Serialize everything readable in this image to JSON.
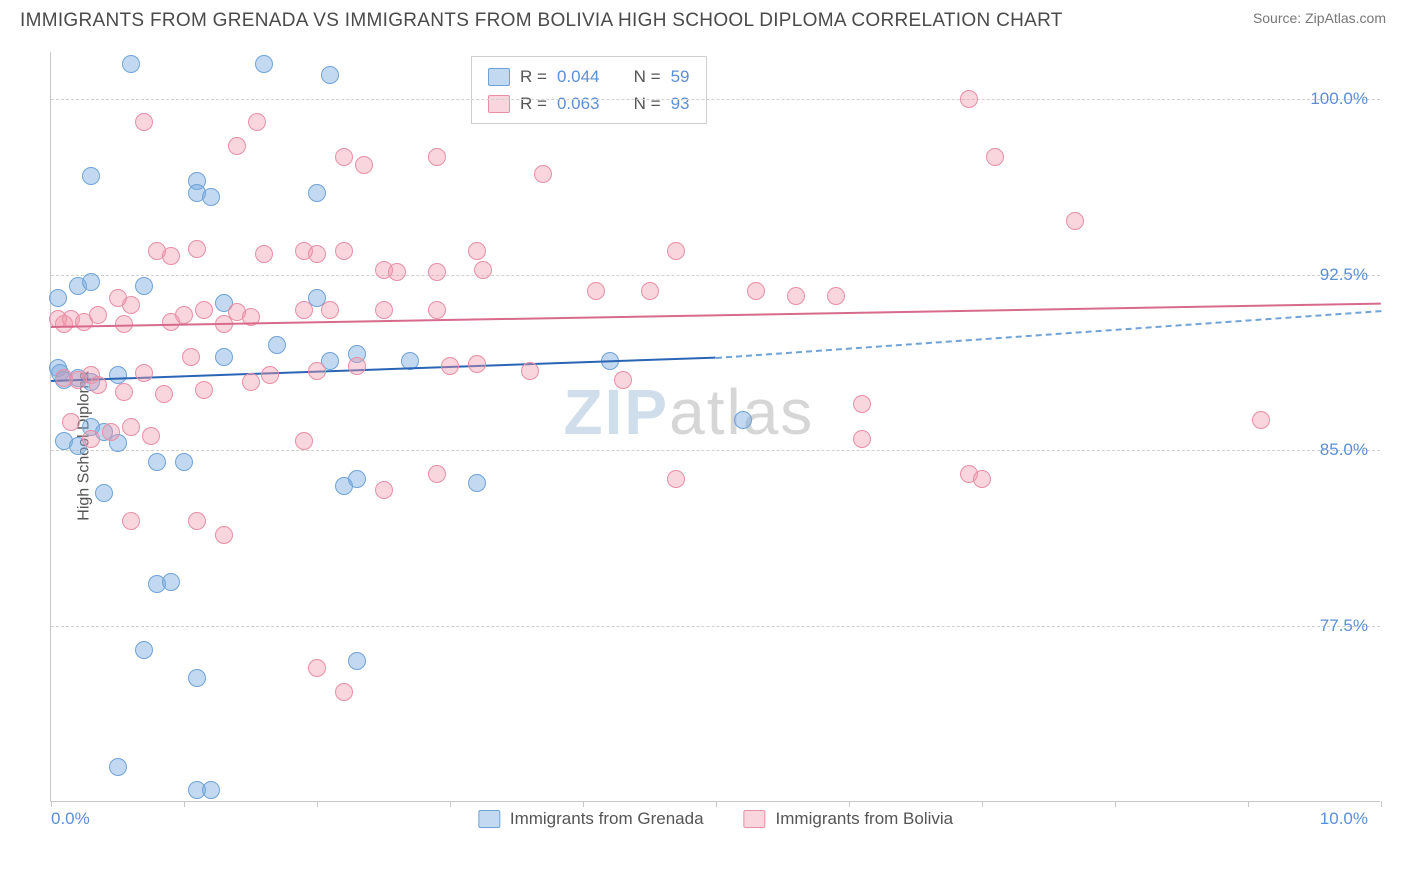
{
  "title": "IMMIGRANTS FROM GRENADA VS IMMIGRANTS FROM BOLIVIA HIGH SCHOOL DIPLOMA CORRELATION CHART",
  "source": "Source: ZipAtlas.com",
  "watermark_a": "ZIP",
  "watermark_b": "atlas",
  "chart": {
    "type": "scatter",
    "y_label": "High School Diploma",
    "xlim": [
      0,
      10
    ],
    "ylim": [
      70,
      102
    ],
    "y_ticks": [
      {
        "v": 77.5,
        "label": "77.5%"
      },
      {
        "v": 85.0,
        "label": "85.0%"
      },
      {
        "v": 92.5,
        "label": "92.5%"
      },
      {
        "v": 100.0,
        "label": "100.0%"
      }
    ],
    "x_ticks": [
      {
        "v": 0,
        "label": "0.0%"
      },
      {
        "v": 5,
        "label": ""
      },
      {
        "v": 10,
        "label": "10.0%"
      }
    ],
    "x_minor_ticks": [
      1,
      2,
      3,
      4,
      6,
      7,
      8,
      9
    ],
    "background_color": "#ffffff",
    "grid_color": "#d0d0d0",
    "series": [
      {
        "key": "grenada",
        "name": "Immigrants from Grenada",
        "fill": "rgba(120,170,225,0.45)",
        "stroke": "#6fa3d8",
        "line_color": "#2a64b5",
        "dash_color": "#6fa3d8",
        "r": 0.044,
        "n": 59,
        "trend": {
          "x1": 0,
          "y1": 88.0,
          "x2": 5.0,
          "y2": 89.0,
          "dx2": 10.0,
          "dy2": 91.0
        },
        "points": [
          [
            0.6,
            101.5
          ],
          [
            1.6,
            101.5
          ],
          [
            2.1,
            101.0
          ],
          [
            0.3,
            96.7
          ],
          [
            1.1,
            96.5
          ],
          [
            1.1,
            96.0
          ],
          [
            1.2,
            95.8
          ],
          [
            2.0,
            96.0
          ],
          [
            0.05,
            91.5
          ],
          [
            0.2,
            92.0
          ],
          [
            0.3,
            92.2
          ],
          [
            0.7,
            92.0
          ],
          [
            1.3,
            91.3
          ],
          [
            2.0,
            91.5
          ],
          [
            1.7,
            89.5
          ],
          [
            0.05,
            88.5
          ],
          [
            0.07,
            88.3
          ],
          [
            0.1,
            88.0
          ],
          [
            0.2,
            88.1
          ],
          [
            0.3,
            87.9
          ],
          [
            0.5,
            88.2
          ],
          [
            1.3,
            89.0
          ],
          [
            2.1,
            88.8
          ],
          [
            2.3,
            89.1
          ],
          [
            2.7,
            88.8
          ],
          [
            4.2,
            88.8
          ],
          [
            0.1,
            85.4
          ],
          [
            0.2,
            85.2
          ],
          [
            0.3,
            86.0
          ],
          [
            0.4,
            85.8
          ],
          [
            0.5,
            85.3
          ],
          [
            0.8,
            84.5
          ],
          [
            1.0,
            84.5
          ],
          [
            0.4,
            83.2
          ],
          [
            2.2,
            83.5
          ],
          [
            2.3,
            83.8
          ],
          [
            3.2,
            83.6
          ],
          [
            0.8,
            79.3
          ],
          [
            0.9,
            79.4
          ],
          [
            0.7,
            76.5
          ],
          [
            2.3,
            76.0
          ],
          [
            1.1,
            75.3
          ],
          [
            0.5,
            71.5
          ],
          [
            1.1,
            70.5
          ],
          [
            1.2,
            70.5
          ],
          [
            5.2,
            86.3
          ]
        ]
      },
      {
        "key": "bolivia",
        "name": "Immigrants from Bolivia",
        "fill": "rgba(240,150,170,0.4)",
        "stroke": "#e78fa5",
        "line_color": "#d86a8c",
        "dash_color": "#e9a3b6",
        "r": 0.063,
        "n": 93,
        "trend": {
          "x1": 0,
          "y1": 90.3,
          "x2": 10.0,
          "y2": 91.3,
          "dx2": 10.0,
          "dy2": 91.3
        },
        "points": [
          [
            0.7,
            99.0
          ],
          [
            1.4,
            98.0
          ],
          [
            1.55,
            99.0
          ],
          [
            2.2,
            97.5
          ],
          [
            2.35,
            97.2
          ],
          [
            2.9,
            97.5
          ],
          [
            3.7,
            96.8
          ],
          [
            6.9,
            100.0
          ],
          [
            7.1,
            97.5
          ],
          [
            7.7,
            94.8
          ],
          [
            0.8,
            93.5
          ],
          [
            0.9,
            93.3
          ],
          [
            1.1,
            93.6
          ],
          [
            1.6,
            93.4
          ],
          [
            1.9,
            93.5
          ],
          [
            2.0,
            93.4
          ],
          [
            2.2,
            93.5
          ],
          [
            2.5,
            92.7
          ],
          [
            2.6,
            92.6
          ],
          [
            2.9,
            92.6
          ],
          [
            3.2,
            93.5
          ],
          [
            3.25,
            92.7
          ],
          [
            4.7,
            93.5
          ],
          [
            4.1,
            91.8
          ],
          [
            4.5,
            91.8
          ],
          [
            5.3,
            91.8
          ],
          [
            5.6,
            91.6
          ],
          [
            5.9,
            91.6
          ],
          [
            0.05,
            90.6
          ],
          [
            0.1,
            90.4
          ],
          [
            0.15,
            90.6
          ],
          [
            0.25,
            90.5
          ],
          [
            0.35,
            90.8
          ],
          [
            0.5,
            91.5
          ],
          [
            0.55,
            90.4
          ],
          [
            0.6,
            91.2
          ],
          [
            0.9,
            90.5
          ],
          [
            1.0,
            90.8
          ],
          [
            1.15,
            91.0
          ],
          [
            1.3,
            90.4
          ],
          [
            1.4,
            90.9
          ],
          [
            1.5,
            90.7
          ],
          [
            1.9,
            91.0
          ],
          [
            2.1,
            91.0
          ],
          [
            2.5,
            91.0
          ],
          [
            2.9,
            91.0
          ],
          [
            0.1,
            88.1
          ],
          [
            0.2,
            88.0
          ],
          [
            0.3,
            88.2
          ],
          [
            0.35,
            87.8
          ],
          [
            0.55,
            87.5
          ],
          [
            0.7,
            88.3
          ],
          [
            0.85,
            87.4
          ],
          [
            1.05,
            89.0
          ],
          [
            1.15,
            87.6
          ],
          [
            1.5,
            87.9
          ],
          [
            1.65,
            88.2
          ],
          [
            2.0,
            88.4
          ],
          [
            2.3,
            88.6
          ],
          [
            3.0,
            88.6
          ],
          [
            3.2,
            88.7
          ],
          [
            3.6,
            88.4
          ],
          [
            4.3,
            88.0
          ],
          [
            0.15,
            86.2
          ],
          [
            0.3,
            85.5
          ],
          [
            0.45,
            85.8
          ],
          [
            0.6,
            86.0
          ],
          [
            0.75,
            85.6
          ],
          [
            1.9,
            85.4
          ],
          [
            2.5,
            83.3
          ],
          [
            2.9,
            84.0
          ],
          [
            4.7,
            83.8
          ],
          [
            6.9,
            84.0
          ],
          [
            6.1,
            85.5
          ],
          [
            7.0,
            83.8
          ],
          [
            6.1,
            87.0
          ],
          [
            0.6,
            82.0
          ],
          [
            1.1,
            82.0
          ],
          [
            1.3,
            81.4
          ],
          [
            2.0,
            75.7
          ],
          [
            2.2,
            74.7
          ],
          [
            9.1,
            86.3
          ]
        ]
      }
    ]
  },
  "legend_stats_label_r": "R =",
  "legend_stats_label_n": "N ="
}
